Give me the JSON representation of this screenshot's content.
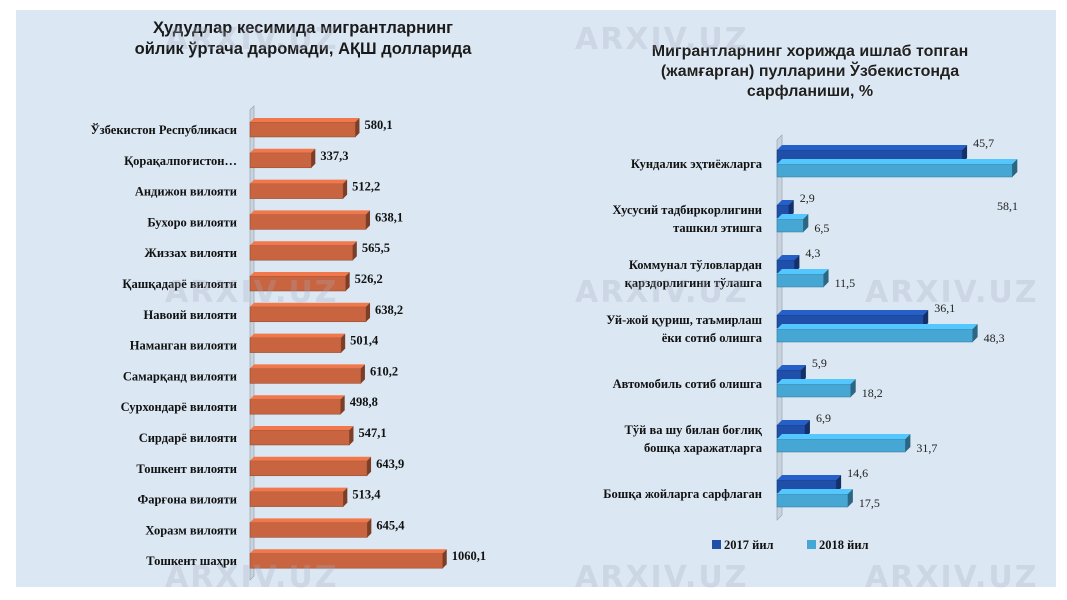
{
  "left_chart": {
    "title_lines": [
      "Ҳудудлар кесимида мигрантларнинг",
      "ойлик ўртача даромади, АҚШ долларида"
    ]
  },
  "right_chart": {
    "title_lines": [
      "Мигрантларнинг хорижда ишлаб топган",
      "(жамғарган) пулларини Ўзбекистонда",
      "сарфланиши, %"
    ]
  },
  "watermark": "ARXIV.UZ",
  "colors": {
    "bar_left": "#c8643f",
    "series_2017": "#1f4fa8",
    "series_2018": "#46a6d4"
  },
  "chart_data": [
    {
      "type": "bar",
      "orientation": "horizontal",
      "title": "Ҳудудлар кесимида мигрантларнинг ойлик ўртача даромади, АҚШ долларида",
      "categories": [
        "Ўзбекистон Республикаси",
        "Қорақалпоғистон…",
        "Андижон вилояти",
        "Бухоро вилояти",
        "Жиззах вилояти",
        "Қашқадарё вилояти",
        "Навоий вилояти",
        "Наманган вилояти",
        "Самарқанд вилояти",
        "Сурхондарё вилояти",
        "Сирдарё вилояти",
        "Тошкент вилояти",
        "Фарғона вилояти",
        "Хоразм вилояти",
        "Тошкент шаҳри"
      ],
      "values": [
        580.1,
        337.3,
        512.2,
        638.1,
        565.5,
        526.2,
        638.2,
        501.4,
        610.2,
        498.8,
        547.1,
        643.9,
        513.4,
        645.4,
        1060.1
      ],
      "value_labels": [
        "580,1",
        "337,3",
        "512,2",
        "638,1",
        "565,5",
        "526,2",
        "638,2",
        "501,4",
        "610,2",
        "498,8",
        "547,1",
        "643,9",
        "513,4",
        "645,4",
        "1060,1"
      ],
      "xlim": [
        0,
        1100
      ],
      "grid": false,
      "legend": "none"
    },
    {
      "type": "bar",
      "orientation": "horizontal",
      "title": "Мигрантларнинг хорижда ишлаб топган (жамғарган) пулларини Ўзбекистонда сарфланиши, %",
      "categories": [
        [
          "Кундалик эҳтиёжларга"
        ],
        [
          "Хусусий тадбиркорлигини",
          "ташкил этишга"
        ],
        [
          "Коммунал тўловлардан",
          "қарздорлигини тўлашга"
        ],
        [
          "Уй-жой қуриш, таъмирлаш",
          "ёки сотиб олишга"
        ],
        [
          "Автомобиль сотиб олишга"
        ],
        [
          "Тўй ва шу билан боғлиқ",
          "бошқа харажатларга"
        ],
        [
          "Бошқа жойларга сарфлаган"
        ]
      ],
      "series": [
        {
          "name": "2017 йил",
          "values": [
            45.7,
            2.9,
            4.3,
            36.1,
            5.9,
            6.9,
            14.6
          ],
          "labels": [
            "45,7",
            "2,9",
            "4,3",
            "36,1",
            "5,9",
            "6,9",
            "14,6"
          ]
        },
        {
          "name": "2018 йил",
          "values": [
            58.1,
            6.5,
            11.5,
            48.3,
            18.2,
            31.7,
            17.5
          ],
          "labels": [
            "58,1",
            "6,5",
            "11,5",
            "48,3",
            "18,2",
            "31,7",
            "17,5"
          ]
        }
      ],
      "xlim": [
        0,
        60
      ],
      "grid": false,
      "legend": "bottom"
    }
  ]
}
